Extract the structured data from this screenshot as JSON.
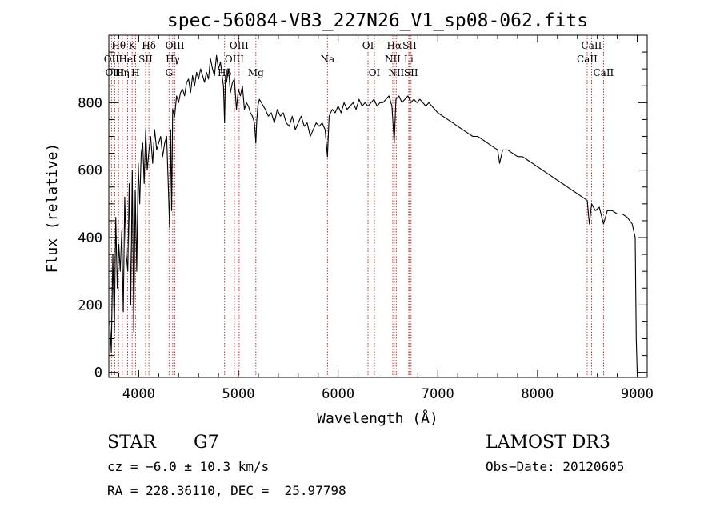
{
  "chart_data": {
    "type": "line",
    "title": "spec-56084-VB3_227N26_V1_sp08-062.fits",
    "xlabel": "Wavelength (Å)",
    "ylabel": "Flux (relative)",
    "xlim": [
      3700,
      9100
    ],
    "ylim": [
      -15,
      1000
    ],
    "xticks": [
      4000,
      5000,
      6000,
      7000,
      8000,
      9000
    ],
    "yticks": [
      0,
      200,
      400,
      600,
      800
    ],
    "x_minor_step": 200,
    "y_minor_step": 50,
    "grid": false,
    "series": [
      {
        "name": "spectrum",
        "color": "#000000",
        "x": [
          3710,
          3725,
          3740,
          3755,
          3770,
          3785,
          3800,
          3815,
          3830,
          3845,
          3860,
          3875,
          3890,
          3905,
          3920,
          3935,
          3950,
          3965,
          3980,
          3995,
          4010,
          4025,
          4040,
          4055,
          4070,
          4085,
          4100,
          4120,
          4140,
          4160,
          4180,
          4200,
          4220,
          4240,
          4260,
          4280,
          4300,
          4310,
          4320,
          4330,
          4340,
          4360,
          4380,
          4400,
          4420,
          4440,
          4460,
          4480,
          4500,
          4520,
          4540,
          4560,
          4580,
          4600,
          4620,
          4640,
          4660,
          4680,
          4700,
          4720,
          4740,
          4760,
          4780,
          4800,
          4820,
          4840,
          4850,
          4861,
          4870,
          4880,
          4900,
          4920,
          4940,
          4960,
          4980,
          5000,
          5020,
          5040,
          5060,
          5080,
          5100,
          5120,
          5140,
          5160,
          5175,
          5183,
          5195,
          5210,
          5230,
          5250,
          5270,
          5300,
          5330,
          5360,
          5390,
          5420,
          5450,
          5480,
          5510,
          5540,
          5570,
          5600,
          5630,
          5660,
          5690,
          5720,
          5750,
          5780,
          5810,
          5840,
          5870,
          5893,
          5910,
          5940,
          5970,
          6000,
          6030,
          6060,
          6090,
          6120,
          6150,
          6180,
          6210,
          6240,
          6270,
          6300,
          6330,
          6360,
          6390,
          6420,
          6450,
          6480,
          6510,
          6540,
          6563,
          6580,
          6610,
          6640,
          6670,
          6700,
          6730,
          6760,
          6790,
          6820,
          6850,
          6880,
          6910,
          6940,
          6970,
          7000,
          7050,
          7100,
          7150,
          7200,
          7250,
          7300,
          7350,
          7400,
          7450,
          7500,
          7550,
          7600,
          7620,
          7650,
          7700,
          7750,
          7800,
          7850,
          7900,
          7950,
          8000,
          8050,
          8100,
          8150,
          8200,
          8250,
          8300,
          8350,
          8400,
          8450,
          8498,
          8520,
          8542,
          8580,
          8620,
          8662,
          8700,
          8750,
          8800,
          8850,
          8900,
          8950,
          8980,
          8990,
          9000
        ],
        "values": [
          150,
          60,
          350,
          120,
          460,
          250,
          380,
          300,
          420,
          180,
          520,
          350,
          300,
          560,
          200,
          600,
          120,
          540,
          300,
          620,
          500,
          650,
          680,
          560,
          720,
          600,
          650,
          700,
          620,
          720,
          660,
          680,
          700,
          640,
          680,
          700,
          520,
          430,
          720,
          480,
          780,
          760,
          820,
          800,
          830,
          840,
          820,
          860,
          870,
          830,
          880,
          850,
          890,
          870,
          900,
          880,
          860,
          890,
          870,
          930,
          900,
          880,
          940,
          900,
          920,
          870,
          850,
          740,
          880,
          860,
          900,
          830,
          860,
          870,
          780,
          840,
          820,
          850,
          780,
          800,
          790,
          770,
          760,
          740,
          680,
          740,
          790,
          810,
          800,
          790,
          780,
          760,
          770,
          740,
          780,
          760,
          770,
          740,
          730,
          760,
          720,
          740,
          760,
          730,
          740,
          700,
          720,
          740,
          730,
          740,
          720,
          640,
          760,
          780,
          770,
          790,
          770,
          800,
          780,
          790,
          800,
          780,
          810,
          790,
          800,
          790,
          800,
          810,
          790,
          800,
          800,
          810,
          820,
          790,
          680,
          810,
          820,
          800,
          810,
          820,
          800,
          810,
          800,
          810,
          800,
          790,
          800,
          790,
          780,
          770,
          760,
          750,
          740,
          730,
          720,
          710,
          700,
          700,
          690,
          680,
          670,
          660,
          620,
          660,
          660,
          650,
          640,
          640,
          630,
          620,
          610,
          600,
          590,
          580,
          570,
          560,
          550,
          540,
          530,
          520,
          510,
          440,
          500,
          480,
          490,
          440,
          480,
          480,
          470,
          470,
          460,
          440,
          400,
          100,
          0
        ]
      }
    ],
    "line_markers": [
      {
        "label": "Hθ",
        "x": 3798,
        "row": 1
      },
      {
        "label": "OII",
        "x": 3727,
        "row": 2
      },
      {
        "label": "OIII",
        "x": 3760,
        "row": 3
      },
      {
        "label": "Hη",
        "x": 3835,
        "row": 3
      },
      {
        "label": "K",
        "x": 3934,
        "row": 1
      },
      {
        "label": "H",
        "x": 3968,
        "row": 3
      },
      {
        "label": "HeI",
        "x": 3889,
        "row": 2
      },
      {
        "label": "SII",
        "x": 4069,
        "row": 2
      },
      {
        "label": "Hδ",
        "x": 4102,
        "row": 1
      },
      {
        "label": "OIII",
        "x": 4363,
        "row": 1
      },
      {
        "label": "Hγ",
        "x": 4341,
        "row": 2
      },
      {
        "label": "G",
        "x": 4304,
        "row": 3
      },
      {
        "label": "Hβ",
        "x": 4861,
        "row": 3
      },
      {
        "label": "OIII",
        "x": 5007,
        "row": 1
      },
      {
        "label": "OIII",
        "x": 4959,
        "row": 2
      },
      {
        "label": "Mg",
        "x": 5175,
        "row": 3
      },
      {
        "label": "Na",
        "x": 5893,
        "row": 2
      },
      {
        "label": "OI",
        "x": 6300,
        "row": 1
      },
      {
        "label": "OI",
        "x": 6364,
        "row": 3
      },
      {
        "label": "Hα",
        "x": 6563,
        "row": 1
      },
      {
        "label": "NII",
        "x": 6548,
        "row": 2
      },
      {
        "label": "NII",
        "x": 6583,
        "row": 3
      },
      {
        "label": "SII",
        "x": 6717,
        "row": 1
      },
      {
        "label": "Li",
        "x": 6708,
        "row": 2
      },
      {
        "label": "SII",
        "x": 6731,
        "row": 3
      },
      {
        "label": "CaII",
        "x": 8542,
        "row": 1
      },
      {
        "label": "CaII",
        "x": 8498,
        "row": 2
      },
      {
        "label": "CaII",
        "x": 8662,
        "row": 3
      }
    ],
    "marker_color": "#b22222"
  },
  "info": {
    "object_class": "STAR",
    "subclass": "G7",
    "survey": "LAMOST DR3",
    "cz": "cz = −6.0 ± 10.3 km/s",
    "obs_date": "Obs−Date: 20120605",
    "coords": "RA = 228.36110, DEC =  25.97798"
  }
}
